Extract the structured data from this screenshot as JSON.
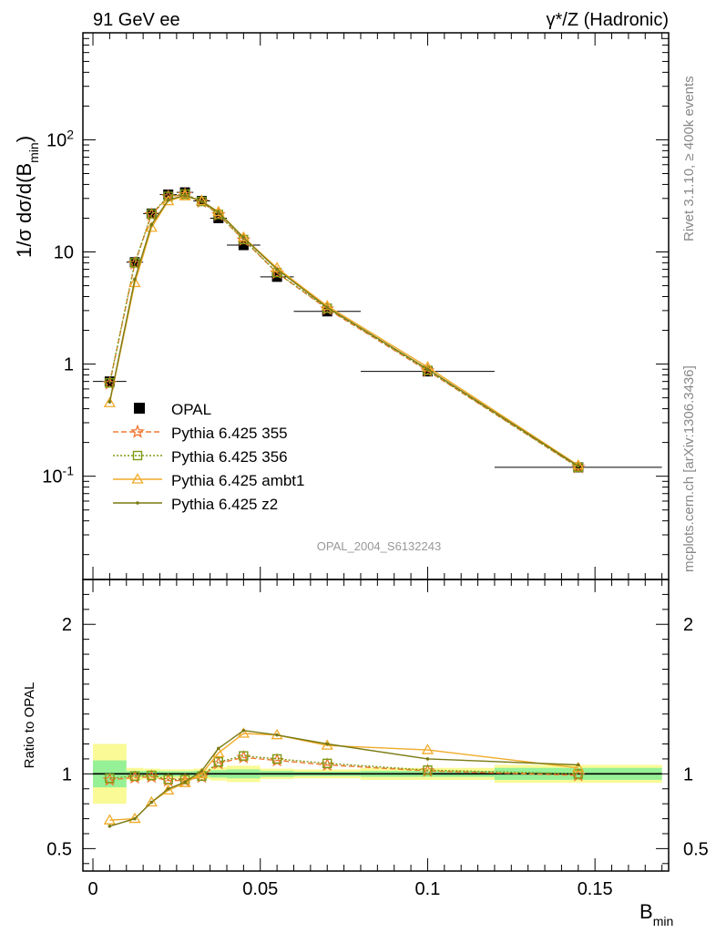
{
  "header": {
    "left": "91 GeV ee",
    "right": "γ*/Z (Hadronic)"
  },
  "side_labels": {
    "rivet": "Rivet 3.1.10, ≥ 400k events",
    "site": "mcplots.cern.ch [arXiv:1306.3436]"
  },
  "analysis_label": "OPAL_2004_S6132243",
  "chart_data": [
    {
      "panel": "main",
      "type": "line",
      "yscale": "log",
      "ylabel": "1/σ dσ/d(B_min)",
      "xlim": [
        -0.003,
        0.172
      ],
      "ylim": [
        0.012,
        900
      ],
      "y_ticks": [
        {
          "value": 0.1,
          "label": "10^-1"
        },
        {
          "value": 1,
          "label": "1"
        },
        {
          "value": 10,
          "label": "10"
        },
        {
          "value": 100,
          "label": "10^2"
        }
      ],
      "legend_position": "lower-left",
      "data": {
        "name": "OPAL",
        "x": [
          0.005,
          0.0125,
          0.0175,
          0.0225,
          0.0275,
          0.0325,
          0.0375,
          0.045,
          0.055,
          0.07,
          0.1,
          0.145
        ],
        "y": [
          0.7,
          8.1,
          22.0,
          32.5,
          34.0,
          28.5,
          20.0,
          11.5,
          6.0,
          2.95,
          0.86,
          0.12
        ],
        "xerr": [
          0.005,
          0.0025,
          0.0025,
          0.0025,
          0.0025,
          0.0025,
          0.0025,
          0.005,
          0.005,
          0.01,
          0.02,
          0.025
        ],
        "color": "#000000"
      },
      "series": [
        {
          "name": "Pythia 6.425 355",
          "color": "#f07832",
          "dash": "6,3",
          "marker": "star",
          "x": [
            0.005,
            0.0125,
            0.0175,
            0.0225,
            0.0275,
            0.0325,
            0.0375,
            0.045,
            0.055,
            0.07,
            0.1,
            0.145
          ],
          "y": [
            0.67,
            7.9,
            21.5,
            31.0,
            32.5,
            28.0,
            21.5,
            12.8,
            6.5,
            3.1,
            0.87,
            0.12
          ]
        },
        {
          "name": "Pythia 6.425 356",
          "color": "#7d9a14",
          "dash": "2,2",
          "marker": "square",
          "x": [
            0.005,
            0.0125,
            0.0175,
            0.0225,
            0.0275,
            0.0325,
            0.0375,
            0.045,
            0.055,
            0.07,
            0.1,
            0.145
          ],
          "y": [
            0.68,
            8.0,
            21.8,
            31.3,
            32.8,
            28.2,
            21.6,
            12.9,
            6.55,
            3.15,
            0.88,
            0.12
          ]
        },
        {
          "name": "Pythia 6.425 ambt1",
          "color": "#f0aa28",
          "dash": "",
          "marker": "triangle",
          "x": [
            0.005,
            0.0125,
            0.0175,
            0.0225,
            0.0275,
            0.0325,
            0.0375,
            0.045,
            0.055,
            0.07,
            0.1,
            0.145
          ],
          "y": [
            0.45,
            5.3,
            16.5,
            28.5,
            31.5,
            28.5,
            22.8,
            13.5,
            7.2,
            3.3,
            0.94,
            0.125
          ]
        },
        {
          "name": "Pythia 6.425 z2",
          "color": "#7a7a14",
          "dash": "",
          "marker": "dot",
          "x": [
            0.005,
            0.0125,
            0.0175,
            0.0225,
            0.0275,
            0.0325,
            0.0375,
            0.045,
            0.055,
            0.07,
            0.1,
            0.145
          ],
          "y": [
            0.46,
            5.7,
            17.5,
            29.0,
            32.0,
            28.2,
            22.6,
            13.4,
            7.0,
            3.2,
            0.9,
            0.123
          ]
        }
      ]
    },
    {
      "panel": "ratio",
      "type": "line",
      "ylabel": "Ratio to OPAL",
      "xlabel": "B_min",
      "xlim": [
        -0.003,
        0.172
      ],
      "ylim": [
        0.35,
        2.3
      ],
      "y_ticks": [
        {
          "value": 0.5,
          "label": "0.5"
        },
        {
          "value": 1,
          "label": "1"
        },
        {
          "value": 2,
          "label": "2"
        }
      ],
      "x_ticks": [
        {
          "value": 0,
          "label": "0"
        },
        {
          "value": 0.05,
          "label": "0.05"
        },
        {
          "value": 0.1,
          "label": "0.1"
        },
        {
          "value": 0.15,
          "label": "0.15"
        }
      ],
      "bands": {
        "edges": [
          0.0,
          0.01,
          0.015,
          0.02,
          0.025,
          0.03,
          0.035,
          0.04,
          0.05,
          0.06,
          0.08,
          0.12,
          0.17
        ],
        "stat_half_width": [
          0.09,
          0.02,
          0.02,
          0.018,
          0.018,
          0.02,
          0.025,
          0.03,
          0.02,
          0.015,
          0.02,
          0.04
        ],
        "total_half_width": [
          0.2,
          0.04,
          0.035,
          0.03,
          0.03,
          0.035,
          0.045,
          0.055,
          0.035,
          0.03,
          0.04,
          0.06
        ],
        "stat_color": "#96f096",
        "total_color": "#fafa96"
      },
      "series": [
        {
          "name": "Pythia 6.425 355",
          "color": "#f07832",
          "dash": "6,3",
          "marker": "star",
          "x": [
            0.005,
            0.0125,
            0.0175,
            0.0225,
            0.0275,
            0.0325,
            0.0375,
            0.045,
            0.055,
            0.07,
            0.1,
            0.145
          ],
          "y": [
            0.96,
            0.975,
            0.98,
            0.955,
            0.955,
            0.98,
            1.07,
            1.11,
            1.09,
            1.06,
            1.02,
            0.99
          ]
        },
        {
          "name": "Pythia 6.425 356",
          "color": "#7d9a14",
          "dash": "2,2",
          "marker": "square",
          "x": [
            0.005,
            0.0125,
            0.0175,
            0.0225,
            0.0275,
            0.0325,
            0.0375,
            0.045,
            0.055,
            0.07,
            0.1,
            0.145
          ],
          "y": [
            0.97,
            0.985,
            0.99,
            0.963,
            0.962,
            0.985,
            1.08,
            1.12,
            1.1,
            1.07,
            1.025,
            1.0
          ]
        },
        {
          "name": "Pythia 6.425 ambt1",
          "color": "#f0aa28",
          "dash": "",
          "marker": "triangle",
          "x": [
            0.005,
            0.0125,
            0.0175,
            0.0225,
            0.0275,
            0.0325,
            0.0375,
            0.045,
            0.055,
            0.07,
            0.1,
            0.145
          ],
          "y": [
            0.69,
            0.7,
            0.81,
            0.89,
            0.94,
            1.0,
            1.14,
            1.27,
            1.26,
            1.19,
            1.16,
            1.04
          ]
        },
        {
          "name": "Pythia 6.425 z2",
          "color": "#7a7a14",
          "dash": "",
          "marker": "dot",
          "x": [
            0.005,
            0.0125,
            0.0175,
            0.0225,
            0.0275,
            0.0325,
            0.0375,
            0.045,
            0.055,
            0.07,
            0.1,
            0.145
          ],
          "y": [
            0.65,
            0.7,
            0.81,
            0.9,
            0.945,
            1.02,
            1.17,
            1.29,
            1.26,
            1.2,
            1.1,
            1.06
          ]
        }
      ]
    }
  ]
}
